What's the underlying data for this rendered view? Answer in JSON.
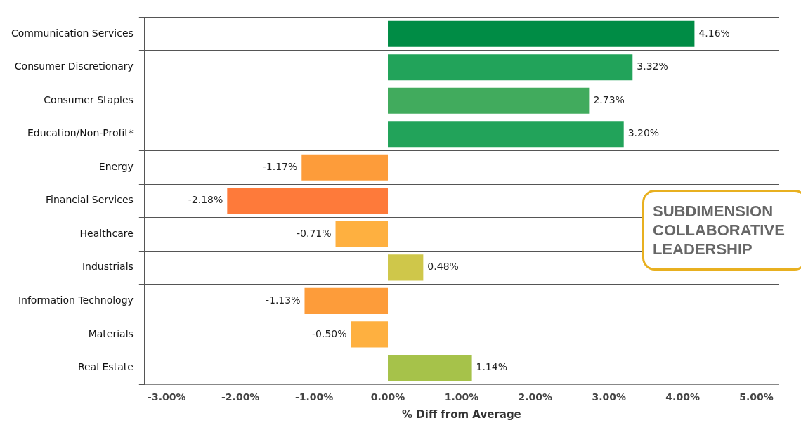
{
  "chart_data": {
    "type": "bar",
    "orientation": "horizontal",
    "xlabel": "% Diff from Average",
    "categories": [
      "Communication Services",
      "Consumer Discretionary",
      "Consumer Staples",
      "Education/Non-Profit*",
      "Energy",
      "Financial Services",
      "Healthcare",
      "Industrials",
      "Information Technology",
      "Materials",
      "Real Estate"
    ],
    "values": [
      4.16,
      3.32,
      2.73,
      3.2,
      -1.17,
      -2.18,
      -0.71,
      0.48,
      -1.13,
      -0.5,
      1.14
    ],
    "colors": [
      "#008c45",
      "#22a35a",
      "#41ab5d",
      "#22a35a",
      "#fd9c3a",
      "#fe7a3a",
      "#feb040",
      "#cfc74a",
      "#fd9c3a",
      "#feb040",
      "#a6c24a"
    ],
    "value_labels": [
      "4.16%",
      "3.32%",
      "2.73%",
      "3.20%",
      "-1.17%",
      "-2.18%",
      "-0.71%",
      "0.48%",
      "-1.13%",
      "-0.50%",
      "1.14%"
    ],
    "xlim": [
      -3.3,
      5.3
    ],
    "xticks": [
      {
        "value": -3,
        "label": "-3.00%"
      },
      {
        "value": -2,
        "label": "-2.00%"
      },
      {
        "value": -1,
        "label": "-1.00%"
      },
      {
        "value": 0,
        "label": "0.00%"
      },
      {
        "value": 1,
        "label": "1.00%"
      },
      {
        "value": 2,
        "label": "2.00%"
      },
      {
        "value": 3,
        "label": "3.00%"
      },
      {
        "value": 4,
        "label": "4.00%"
      },
      {
        "value": 5,
        "label": "5.00%"
      }
    ],
    "grid": "y",
    "legend": false,
    "annotations": [
      "SUBDIMENSION\nCOLLABORATIVE\nLEADERSHIP"
    ]
  }
}
